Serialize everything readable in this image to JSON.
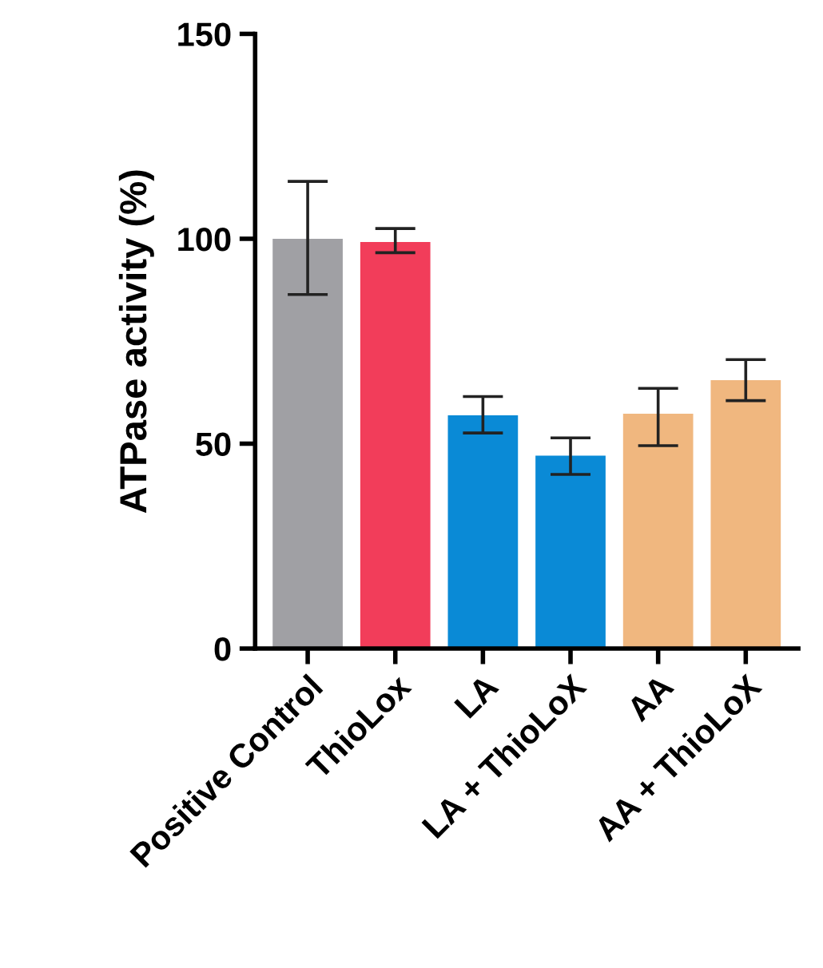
{
  "chart_data": {
    "type": "bar",
    "ylabel": "ATPase activity (%)",
    "categories": [
      "Positive Control",
      "ThioLox",
      "LA",
      "LA + ThioLoX",
      "AA",
      "AA + ThioLoX"
    ],
    "values": [
      100,
      99.2,
      56.9,
      47.1,
      57.3,
      65.5
    ],
    "colors": [
      "#a0a0a4",
      "#f23d5a",
      "#0a8ad6",
      "#0a8ad6",
      "#f0b77f",
      "#f0b77f"
    ],
    "errors": [
      [
        86.4,
        114
      ],
      [
        96.6,
        102.5
      ],
      [
        52.6,
        61.5
      ],
      [
        42.5,
        51.4
      ],
      [
        49.5,
        63.5
      ],
      [
        60.5,
        70.5
      ]
    ],
    "ylim": [
      0,
      150
    ],
    "yticks": [
      0,
      50,
      100,
      150
    ],
    "grid": false,
    "legend": false
  }
}
